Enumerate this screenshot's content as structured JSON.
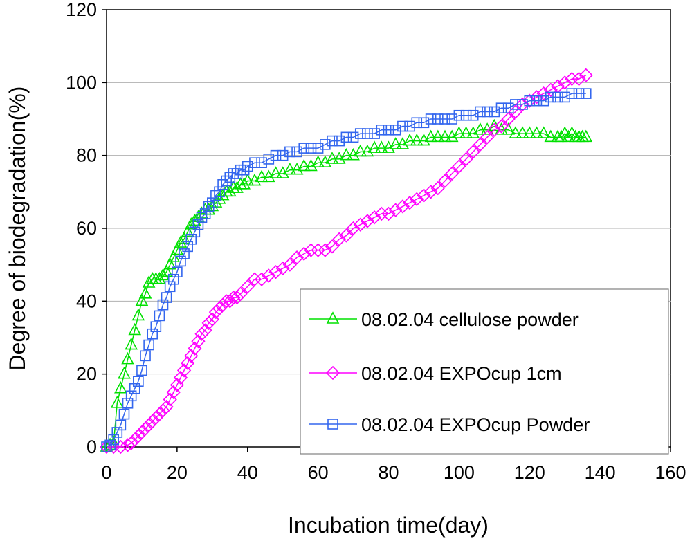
{
  "chart_data": {
    "type": "line",
    "title": "",
    "xlabel": "Incubation time(day)",
    "ylabel": "Degree of biodegradation(%)",
    "xlim": [
      0,
      160
    ],
    "ylim": [
      0,
      120
    ],
    "xticks": [
      0,
      20,
      40,
      60,
      80,
      100,
      120,
      140,
      160
    ],
    "yticks": [
      0,
      20,
      40,
      60,
      80,
      100,
      120
    ],
    "grid": "horizontal",
    "legend_position": "bottom-right",
    "series": [
      {
        "name": "08.02.04 cellulose powder",
        "color": "#00e000",
        "marker": "triangle",
        "x": [
          0,
          1,
          2,
          3,
          4,
          5,
          6,
          7,
          8,
          9,
          10,
          11,
          12,
          13,
          14,
          15,
          16,
          17,
          18,
          19,
          20,
          21,
          22,
          23,
          24,
          25,
          26,
          27,
          28,
          29,
          30,
          31,
          32,
          33,
          34,
          35,
          36,
          37,
          38,
          39,
          40,
          42,
          44,
          46,
          48,
          50,
          52,
          54,
          56,
          58,
          60,
          62,
          64,
          66,
          68,
          70,
          72,
          74,
          76,
          78,
          80,
          82,
          84,
          86,
          88,
          90,
          92,
          94,
          96,
          98,
          100,
          102,
          104,
          106,
          108,
          110,
          112,
          114,
          116,
          118,
          120,
          122,
          124,
          126,
          128,
          129,
          130,
          131,
          132,
          133,
          134,
          135,
          136
        ],
        "y": [
          0,
          0.5,
          1,
          12,
          16,
          20,
          24,
          28,
          32,
          36,
          40,
          42,
          45,
          46,
          46,
          46,
          47,
          48,
          50,
          52,
          54,
          56,
          57,
          59,
          61,
          62,
          63,
          64,
          65,
          65,
          66,
          67,
          68,
          69,
          70,
          70,
          71,
          71,
          72,
          72,
          73,
          73,
          74,
          74,
          75,
          75,
          76,
          76,
          77,
          77,
          78,
          78,
          79,
          79,
          80,
          80,
          81,
          81,
          82,
          82,
          82,
          83,
          83,
          84,
          84,
          84,
          85,
          85,
          85,
          85,
          86,
          86,
          86,
          87,
          87,
          88,
          87,
          87,
          86,
          86,
          86,
          86,
          86,
          85,
          85,
          85,
          86,
          85,
          86,
          85,
          85,
          85,
          85
        ]
      },
      {
        "name": "08.02.04 EXPOcup 1cm",
        "color": "#ff00ff",
        "marker": "diamond",
        "x": [
          0,
          2,
          4,
          6,
          7,
          8,
          9,
          10,
          11,
          12,
          13,
          14,
          15,
          16,
          17,
          18,
          19,
          20,
          21,
          22,
          23,
          24,
          25,
          26,
          27,
          28,
          29,
          30,
          31,
          32,
          33,
          34,
          35,
          36,
          37,
          38,
          40,
          42,
          44,
          46,
          48,
          50,
          52,
          54,
          56,
          58,
          60,
          62,
          64,
          66,
          68,
          70,
          72,
          74,
          76,
          78,
          80,
          82,
          84,
          86,
          88,
          90,
          92,
          94,
          96,
          98,
          100,
          102,
          104,
          106,
          108,
          110,
          112,
          114,
          116,
          118,
          120,
          122,
          124,
          126,
          128,
          130,
          132,
          134,
          136
        ],
        "y": [
          0,
          0,
          0,
          0.5,
          1,
          2,
          3,
          4,
          5,
          6,
          7,
          8,
          9,
          10,
          11,
          13,
          15,
          17,
          19,
          21,
          23,
          25,
          27,
          29,
          31,
          32,
          34,
          35,
          37,
          38,
          39,
          40,
          40,
          41,
          41,
          42,
          44,
          46,
          46,
          47,
          48,
          49,
          50,
          52,
          53,
          54,
          54,
          54,
          55,
          57,
          58,
          60,
          61,
          62,
          63,
          64,
          64,
          65,
          66,
          67,
          68,
          69,
          70,
          71,
          73,
          75,
          77,
          79,
          81,
          83,
          85,
          87,
          88,
          90,
          92,
          94,
          95,
          96,
          97,
          98,
          99,
          100,
          101,
          101,
          102
        ]
      },
      {
        "name": "08.02.04 EXPOcup Powder",
        "color": "#3366ee",
        "marker": "square",
        "x": [
          0,
          1,
          2,
          3,
          4,
          5,
          6,
          7,
          8,
          9,
          10,
          11,
          12,
          13,
          14,
          15,
          16,
          17,
          18,
          19,
          20,
          21,
          22,
          23,
          24,
          25,
          26,
          27,
          28,
          29,
          30,
          31,
          32,
          33,
          34,
          35,
          36,
          37,
          38,
          39,
          40,
          42,
          44,
          46,
          48,
          50,
          52,
          54,
          56,
          58,
          60,
          62,
          64,
          66,
          68,
          70,
          72,
          74,
          76,
          78,
          80,
          82,
          84,
          86,
          88,
          90,
          92,
          94,
          96,
          98,
          100,
          102,
          104,
          106,
          108,
          110,
          112,
          114,
          116,
          118,
          120,
          122,
          124,
          126,
          128,
          130,
          132,
          134,
          136
        ],
        "y": [
          0,
          0.5,
          2,
          4,
          6,
          9,
          12,
          14,
          16,
          18,
          21,
          25,
          28,
          31,
          33,
          36,
          39,
          41,
          44,
          46,
          48,
          51,
          53,
          55,
          57,
          59,
          61,
          63,
          64,
          66,
          67,
          69,
          70,
          72,
          73,
          74,
          75,
          75,
          76,
          76,
          77,
          78,
          78,
          79,
          80,
          80,
          81,
          81,
          82,
          82,
          82,
          83,
          84,
          84,
          85,
          85,
          86,
          86,
          86,
          87,
          87,
          87,
          88,
          88,
          89,
          89,
          90,
          90,
          90,
          90,
          91,
          91,
          91,
          92,
          92,
          92,
          93,
          93,
          94,
          94,
          95,
          95,
          95,
          96,
          96,
          96,
          97,
          97,
          97
        ]
      }
    ]
  }
}
